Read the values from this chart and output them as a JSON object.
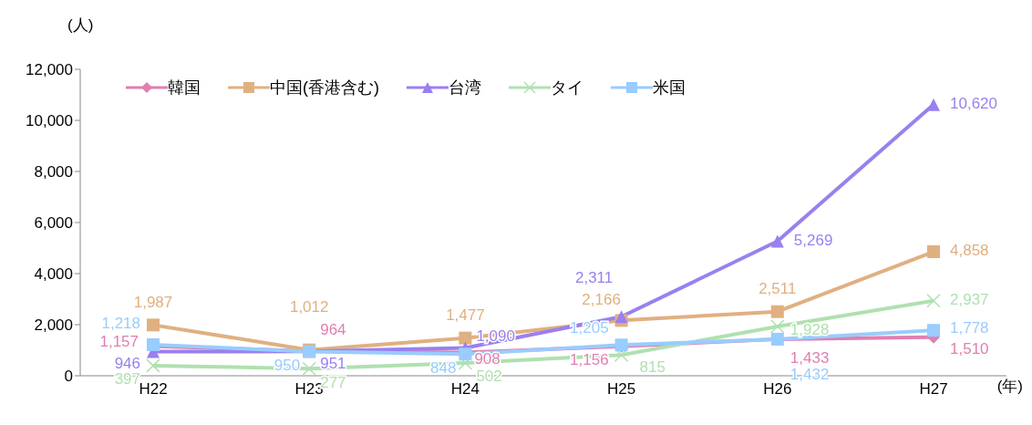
{
  "chart_data": {
    "type": "line",
    "ylabel": "(人)",
    "xlabel": "(年)",
    "categories": [
      "H22",
      "H23",
      "H24",
      "H25",
      "H26",
      "H27"
    ],
    "ylim": [
      0,
      12000
    ],
    "yticks": [
      {
        "value": 0,
        "label": "0"
      },
      {
        "value": 2000,
        "label": "2,000"
      },
      {
        "value": 4000,
        "label": "4,000"
      },
      {
        "value": 6000,
        "label": "6,000"
      },
      {
        "value": 8000,
        "label": "8,000"
      },
      {
        "value": 10000,
        "label": "10,000"
      },
      {
        "value": 12000,
        "label": "12,000"
      }
    ],
    "grid": false,
    "legend": "top left",
    "data_labels": true,
    "series": [
      {
        "name": "韓国",
        "color": "#e07fb0",
        "marker": "diamond",
        "values": [
          1157,
          964,
          908,
          1156,
          1433,
          1510
        ],
        "value_labels": [
          "1,157",
          "964",
          "908",
          "1,156",
          "1,433",
          "1,510"
        ]
      },
      {
        "name": "中国(香港含む)",
        "color": "#e0b080",
        "marker": "square",
        "values": [
          1987,
          1012,
          1477,
          2166,
          2511,
          4858
        ],
        "value_labels": [
          "1,987",
          "1,012",
          "1,477",
          "2,166",
          "2,511",
          "4,858"
        ]
      },
      {
        "name": "台湾",
        "color": "#9980f0",
        "marker": "triangle",
        "values": [
          946,
          951,
          1090,
          2311,
          5269,
          10620
        ],
        "value_labels": [
          "946",
          "951",
          "1,090",
          "2,311",
          "5,269",
          "10,620"
        ]
      },
      {
        "name": "タイ",
        "color": "#b0e0b0",
        "marker": "cross",
        "values": [
          397,
          277,
          502,
          815,
          1928,
          2937
        ],
        "value_labels": [
          "397",
          "277",
          "502",
          "815",
          "1,928",
          "2,937"
        ]
      },
      {
        "name": "米国",
        "color": "#99ccff",
        "marker": "square",
        "values": [
          1218,
          950,
          848,
          1205,
          1432,
          1778
        ],
        "value_labels": [
          "1,218",
          "950",
          "848",
          "1,205",
          "1,432",
          "1,778"
        ]
      }
    ]
  }
}
